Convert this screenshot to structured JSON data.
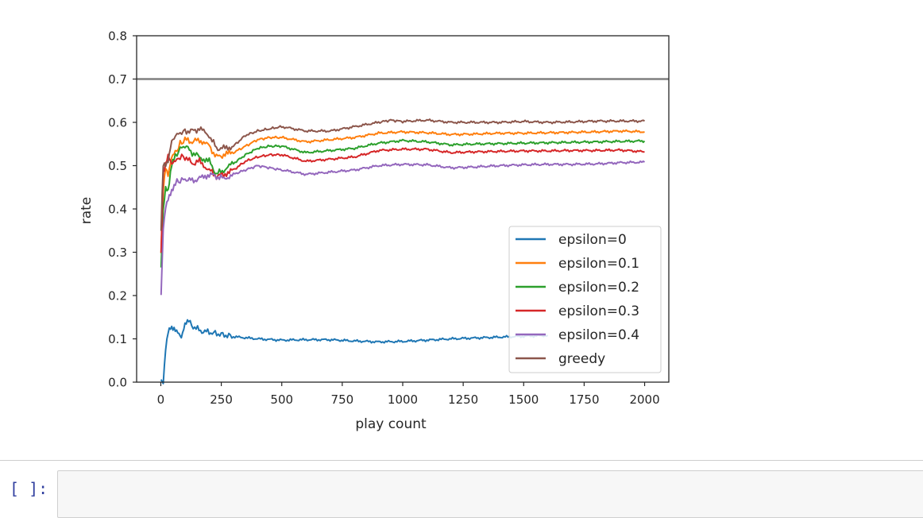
{
  "notebook": {
    "prompt": "[ ]:"
  },
  "chart_data": {
    "type": "line",
    "xlabel": "play count",
    "ylabel": "rate",
    "xlim": [
      -100,
      2100
    ],
    "ylim": [
      0.0,
      0.8
    ],
    "xticks": [
      0,
      250,
      500,
      750,
      1000,
      1250,
      1500,
      1750,
      2000
    ],
    "yticks": [
      0.0,
      0.1,
      0.2,
      0.3,
      0.4,
      0.5,
      0.6,
      0.7,
      0.8
    ],
    "xtick_labels": [
      "0",
      "250",
      "500",
      "750",
      "1000",
      "1250",
      "1500",
      "1750",
      "2000"
    ],
    "ytick_labels": [
      "0.0",
      "0.1",
      "0.2",
      "0.3",
      "0.4",
      "0.5",
      "0.6",
      "0.7",
      "0.8"
    ],
    "grid": false,
    "legend_position": "lower-right",
    "reference_line": {
      "y": 0.7,
      "color": "#7f7f7f"
    },
    "series": [
      {
        "name": "epsilon=0",
        "color": "#1f77b4",
        "points": [
          [
            1,
            0.0
          ],
          [
            10,
            0.0
          ],
          [
            20,
            0.08
          ],
          [
            30,
            0.12
          ],
          [
            40,
            0.13
          ],
          [
            55,
            0.125
          ],
          [
            70,
            0.115
          ],
          [
            85,
            0.1
          ],
          [
            100,
            0.13
          ],
          [
            115,
            0.14
          ],
          [
            140,
            0.125
          ],
          [
            170,
            0.118
          ],
          [
            200,
            0.115
          ],
          [
            250,
            0.11
          ],
          [
            300,
            0.105
          ],
          [
            400,
            0.1
          ],
          [
            500,
            0.097
          ],
          [
            600,
            0.098
          ],
          [
            700,
            0.098
          ],
          [
            800,
            0.095
          ],
          [
            900,
            0.093
          ],
          [
            1000,
            0.094
          ],
          [
            1100,
            0.097
          ],
          [
            1200,
            0.1
          ],
          [
            1300,
            0.102
          ],
          [
            1400,
            0.104
          ],
          [
            1500,
            0.106
          ],
          [
            1600,
            0.108
          ]
        ]
      },
      {
        "name": "epsilon=0.1",
        "color": "#ff7f0e",
        "points": [
          [
            1,
            0.3
          ],
          [
            10,
            0.45
          ],
          [
            20,
            0.5
          ],
          [
            30,
            0.48
          ],
          [
            45,
            0.52
          ],
          [
            60,
            0.53
          ],
          [
            80,
            0.55
          ],
          [
            100,
            0.56
          ],
          [
            130,
            0.555
          ],
          [
            160,
            0.56
          ],
          [
            200,
            0.545
          ],
          [
            230,
            0.52
          ],
          [
            260,
            0.525
          ],
          [
            300,
            0.53
          ],
          [
            350,
            0.545
          ],
          [
            400,
            0.56
          ],
          [
            450,
            0.565
          ],
          [
            500,
            0.565
          ],
          [
            600,
            0.555
          ],
          [
            700,
            0.56
          ],
          [
            800,
            0.565
          ],
          [
            900,
            0.575
          ],
          [
            1000,
            0.578
          ],
          [
            1100,
            0.576
          ],
          [
            1200,
            0.572
          ],
          [
            1300,
            0.573
          ],
          [
            1400,
            0.575
          ],
          [
            1500,
            0.575
          ],
          [
            1600,
            0.576
          ],
          [
            1700,
            0.577
          ],
          [
            1800,
            0.578
          ],
          [
            1900,
            0.58
          ],
          [
            2000,
            0.578
          ]
        ]
      },
      {
        "name": "epsilon=0.2",
        "color": "#2ca02c",
        "points": [
          [
            1,
            0.27
          ],
          [
            10,
            0.4
          ],
          [
            20,
            0.45
          ],
          [
            30,
            0.44
          ],
          [
            45,
            0.5
          ],
          [
            60,
            0.52
          ],
          [
            80,
            0.54
          ],
          [
            100,
            0.545
          ],
          [
            130,
            0.53
          ],
          [
            160,
            0.52
          ],
          [
            200,
            0.51
          ],
          [
            230,
            0.48
          ],
          [
            260,
            0.49
          ],
          [
            300,
            0.505
          ],
          [
            350,
            0.525
          ],
          [
            400,
            0.54
          ],
          [
            450,
            0.545
          ],
          [
            500,
            0.545
          ],
          [
            600,
            0.53
          ],
          [
            700,
            0.535
          ],
          [
            800,
            0.54
          ],
          [
            900,
            0.552
          ],
          [
            1000,
            0.558
          ],
          [
            1100,
            0.555
          ],
          [
            1200,
            0.548
          ],
          [
            1300,
            0.55
          ],
          [
            1400,
            0.551
          ],
          [
            1500,
            0.552
          ],
          [
            1600,
            0.553
          ],
          [
            1700,
            0.554
          ],
          [
            1800,
            0.555
          ],
          [
            1900,
            0.556
          ],
          [
            2000,
            0.557
          ]
        ]
      },
      {
        "name": "epsilon=0.3",
        "color": "#d62728",
        "points": [
          [
            1,
            0.3
          ],
          [
            10,
            0.48
          ],
          [
            20,
            0.5
          ],
          [
            30,
            0.52
          ],
          [
            45,
            0.5
          ],
          [
            60,
            0.51
          ],
          [
            80,
            0.52
          ],
          [
            100,
            0.52
          ],
          [
            130,
            0.505
          ],
          [
            160,
            0.51
          ],
          [
            200,
            0.49
          ],
          [
            230,
            0.475
          ],
          [
            260,
            0.48
          ],
          [
            300,
            0.49
          ],
          [
            350,
            0.51
          ],
          [
            400,
            0.52
          ],
          [
            450,
            0.525
          ],
          [
            500,
            0.525
          ],
          [
            600,
            0.51
          ],
          [
            700,
            0.515
          ],
          [
            800,
            0.52
          ],
          [
            900,
            0.535
          ],
          [
            1000,
            0.538
          ],
          [
            1100,
            0.538
          ],
          [
            1200,
            0.53
          ],
          [
            1300,
            0.532
          ],
          [
            1400,
            0.533
          ],
          [
            1500,
            0.534
          ],
          [
            1600,
            0.534
          ],
          [
            1700,
            0.535
          ],
          [
            1800,
            0.535
          ],
          [
            1900,
            0.536
          ],
          [
            2000,
            0.532
          ]
        ]
      },
      {
        "name": "epsilon=0.4",
        "color": "#9467bd",
        "points": [
          [
            1,
            0.2
          ],
          [
            10,
            0.35
          ],
          [
            20,
            0.4
          ],
          [
            30,
            0.42
          ],
          [
            45,
            0.44
          ],
          [
            60,
            0.46
          ],
          [
            80,
            0.465
          ],
          [
            100,
            0.47
          ],
          [
            130,
            0.465
          ],
          [
            160,
            0.47
          ],
          [
            200,
            0.48
          ],
          [
            230,
            0.475
          ],
          [
            260,
            0.47
          ],
          [
            300,
            0.48
          ],
          [
            350,
            0.49
          ],
          [
            400,
            0.5
          ],
          [
            450,
            0.495
          ],
          [
            500,
            0.49
          ],
          [
            600,
            0.48
          ],
          [
            700,
            0.485
          ],
          [
            800,
            0.49
          ],
          [
            900,
            0.5
          ],
          [
            1000,
            0.503
          ],
          [
            1100,
            0.502
          ],
          [
            1200,
            0.495
          ],
          [
            1300,
            0.497
          ],
          [
            1400,
            0.5
          ],
          [
            1500,
            0.502
          ],
          [
            1600,
            0.503
          ],
          [
            1700,
            0.503
          ],
          [
            1800,
            0.504
          ],
          [
            1900,
            0.507
          ],
          [
            2000,
            0.508
          ]
        ]
      },
      {
        "name": "greedy",
        "color": "#8c564b",
        "points": [
          [
            1,
            0.35
          ],
          [
            10,
            0.5
          ],
          [
            20,
            0.5
          ],
          [
            30,
            0.51
          ],
          [
            45,
            0.56
          ],
          [
            60,
            0.57
          ],
          [
            80,
            0.575
          ],
          [
            100,
            0.58
          ],
          [
            130,
            0.58
          ],
          [
            160,
            0.585
          ],
          [
            200,
            0.57
          ],
          [
            230,
            0.54
          ],
          [
            260,
            0.54
          ],
          [
            300,
            0.545
          ],
          [
            350,
            0.57
          ],
          [
            400,
            0.58
          ],
          [
            450,
            0.585
          ],
          [
            500,
            0.59
          ],
          [
            600,
            0.58
          ],
          [
            700,
            0.58
          ],
          [
            800,
            0.59
          ],
          [
            900,
            0.6
          ],
          [
            950,
            0.605
          ],
          [
            1000,
            0.602
          ],
          [
            1100,
            0.605
          ],
          [
            1200,
            0.6
          ],
          [
            1300,
            0.6
          ],
          [
            1400,
            0.6
          ],
          [
            1500,
            0.602
          ],
          [
            1600,
            0.6
          ],
          [
            1700,
            0.601
          ],
          [
            1800,
            0.603
          ],
          [
            1900,
            0.603
          ],
          [
            2000,
            0.603
          ]
        ]
      }
    ]
  }
}
